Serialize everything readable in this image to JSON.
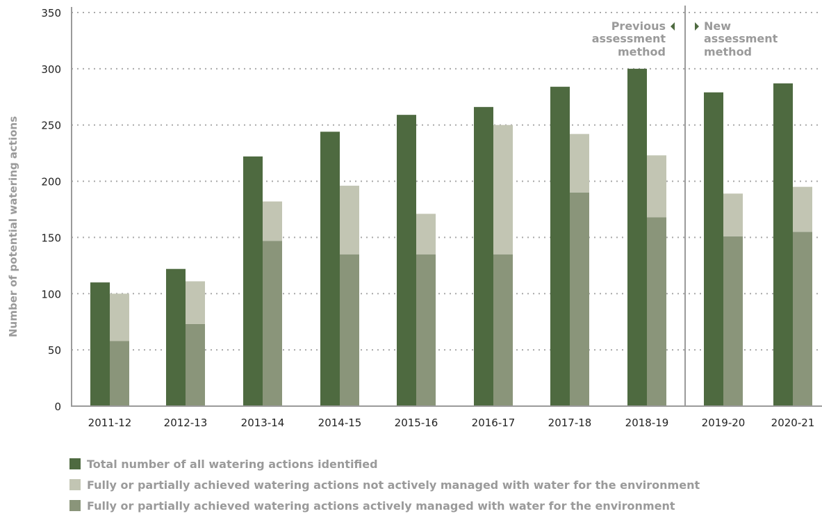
{
  "chart_data": {
    "type": "bar",
    "categories": [
      "2011-12",
      "2012-13",
      "2013-14",
      "2014-15",
      "2015-16",
      "2016-17",
      "2017-18",
      "2018-19",
      "2019-20",
      "2020-21"
    ],
    "series": [
      {
        "name": "Total number of all watering actions identified",
        "color": "#4e6a40",
        "values": [
          110,
          122,
          222,
          244,
          259,
          266,
          284,
          300,
          279,
          287
        ]
      },
      {
        "name": "Fully or partially achieved watering actions not actively managed with water for the environment",
        "color": "#c2c5b3",
        "values": [
          42,
          38,
          35,
          61,
          36,
          115,
          52,
          55,
          38,
          40
        ]
      },
      {
        "name": "Fully or partially achieved watering actions actively managed with water for the environment",
        "color": "#8a957a",
        "values": [
          58,
          73,
          147,
          135,
          135,
          135,
          190,
          168,
          151,
          155
        ]
      }
    ],
    "stacked_series": [
      1,
      2
    ],
    "ylabel": "Number of potential watering actions",
    "ylim": [
      0,
      350
    ],
    "yticks": [
      0,
      50,
      100,
      150,
      200,
      250,
      300,
      350
    ],
    "grid": true,
    "annotations": {
      "previous": [
        "Previous",
        "assessment",
        "method"
      ],
      "new": [
        "New",
        "assessment",
        "method"
      ]
    },
    "legend_position": "bottom"
  }
}
